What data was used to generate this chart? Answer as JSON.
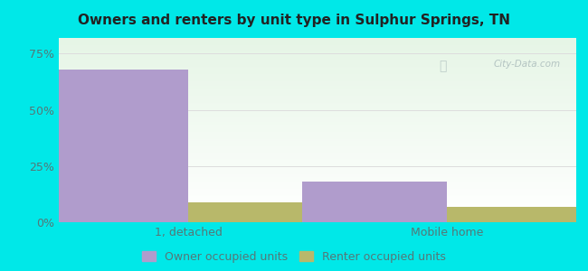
{
  "title": "Owners and renters by unit type in Sulphur Springs, TN",
  "categories": [
    "1, detached",
    "Mobile home"
  ],
  "owner_values": [
    68.0,
    18.0
  ],
  "renter_values": [
    9.0,
    7.0
  ],
  "owner_color": "#b09ccc",
  "renter_color": "#b8b86a",
  "owner_label": "Owner occupied units",
  "renter_label": "Renter occupied units",
  "yticks": [
    0,
    25,
    50,
    75
  ],
  "yticklabels": [
    "0%",
    "25%",
    "50%",
    "75%"
  ],
  "ylim": [
    0,
    82
  ],
  "background_outer": "#00e8e8",
  "grid_color": "#dddddd",
  "bar_width": 0.28,
  "group_positions": [
    0.25,
    0.75
  ],
  "watermark": "City-Data.com"
}
